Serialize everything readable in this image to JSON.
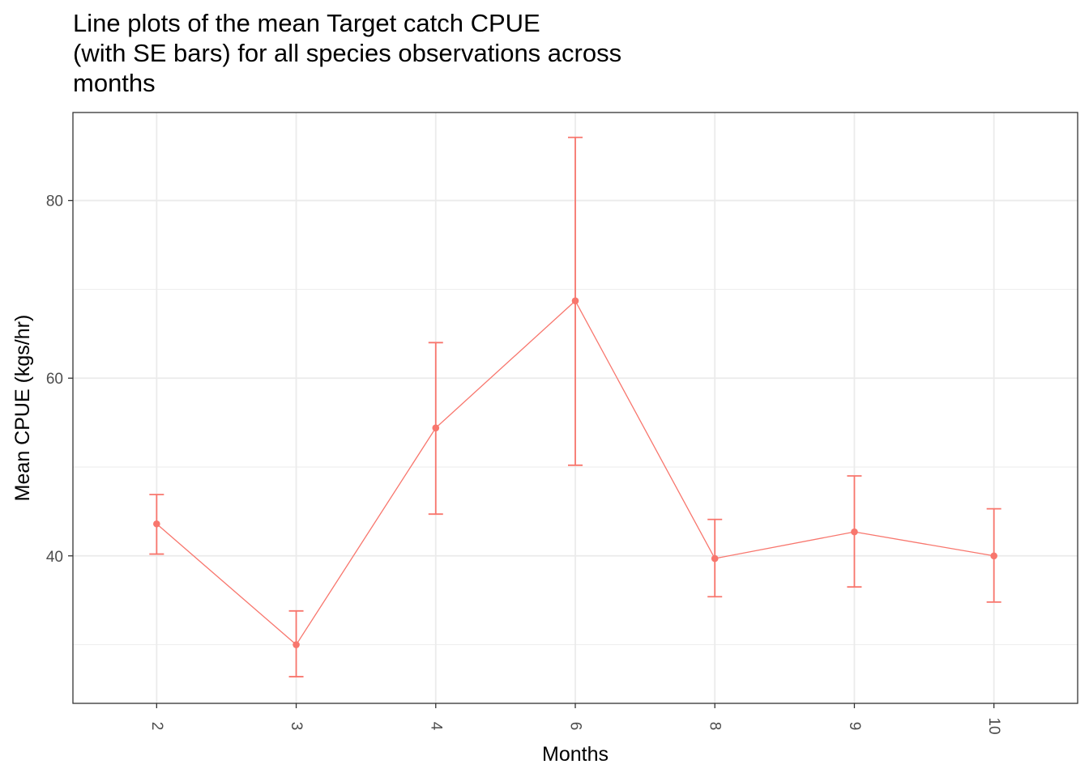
{
  "chart_data": {
    "type": "line",
    "title_lines": [
      "Line plots of the mean Target catch CPUE",
      "(with SE bars) for all species observations across",
      "months"
    ],
    "xlabel": "Months",
    "ylabel": "Mean CPUE (kgs/hr)",
    "categories": [
      "2",
      "3",
      "4",
      "6",
      "8",
      "9",
      "10"
    ],
    "series": [
      {
        "values": [
          43.6,
          30.0,
          54.4,
          68.7,
          39.7,
          42.7,
          40.0
        ],
        "se_lower": [
          40.2,
          26.4,
          44.7,
          50.2,
          35.4,
          36.5,
          34.8
        ],
        "se_upper": [
          46.9,
          33.8,
          64.0,
          87.1,
          44.1,
          49.0,
          45.3
        ]
      }
    ],
    "ylim": [
      23.4,
      89.9
    ],
    "yticks": [
      40,
      60,
      80
    ],
    "grid": true,
    "legend": "none",
    "theme": "bw",
    "colors": {
      "series": "#f8766d",
      "grid": "#ebebeb",
      "panel_border": "#333333"
    }
  }
}
